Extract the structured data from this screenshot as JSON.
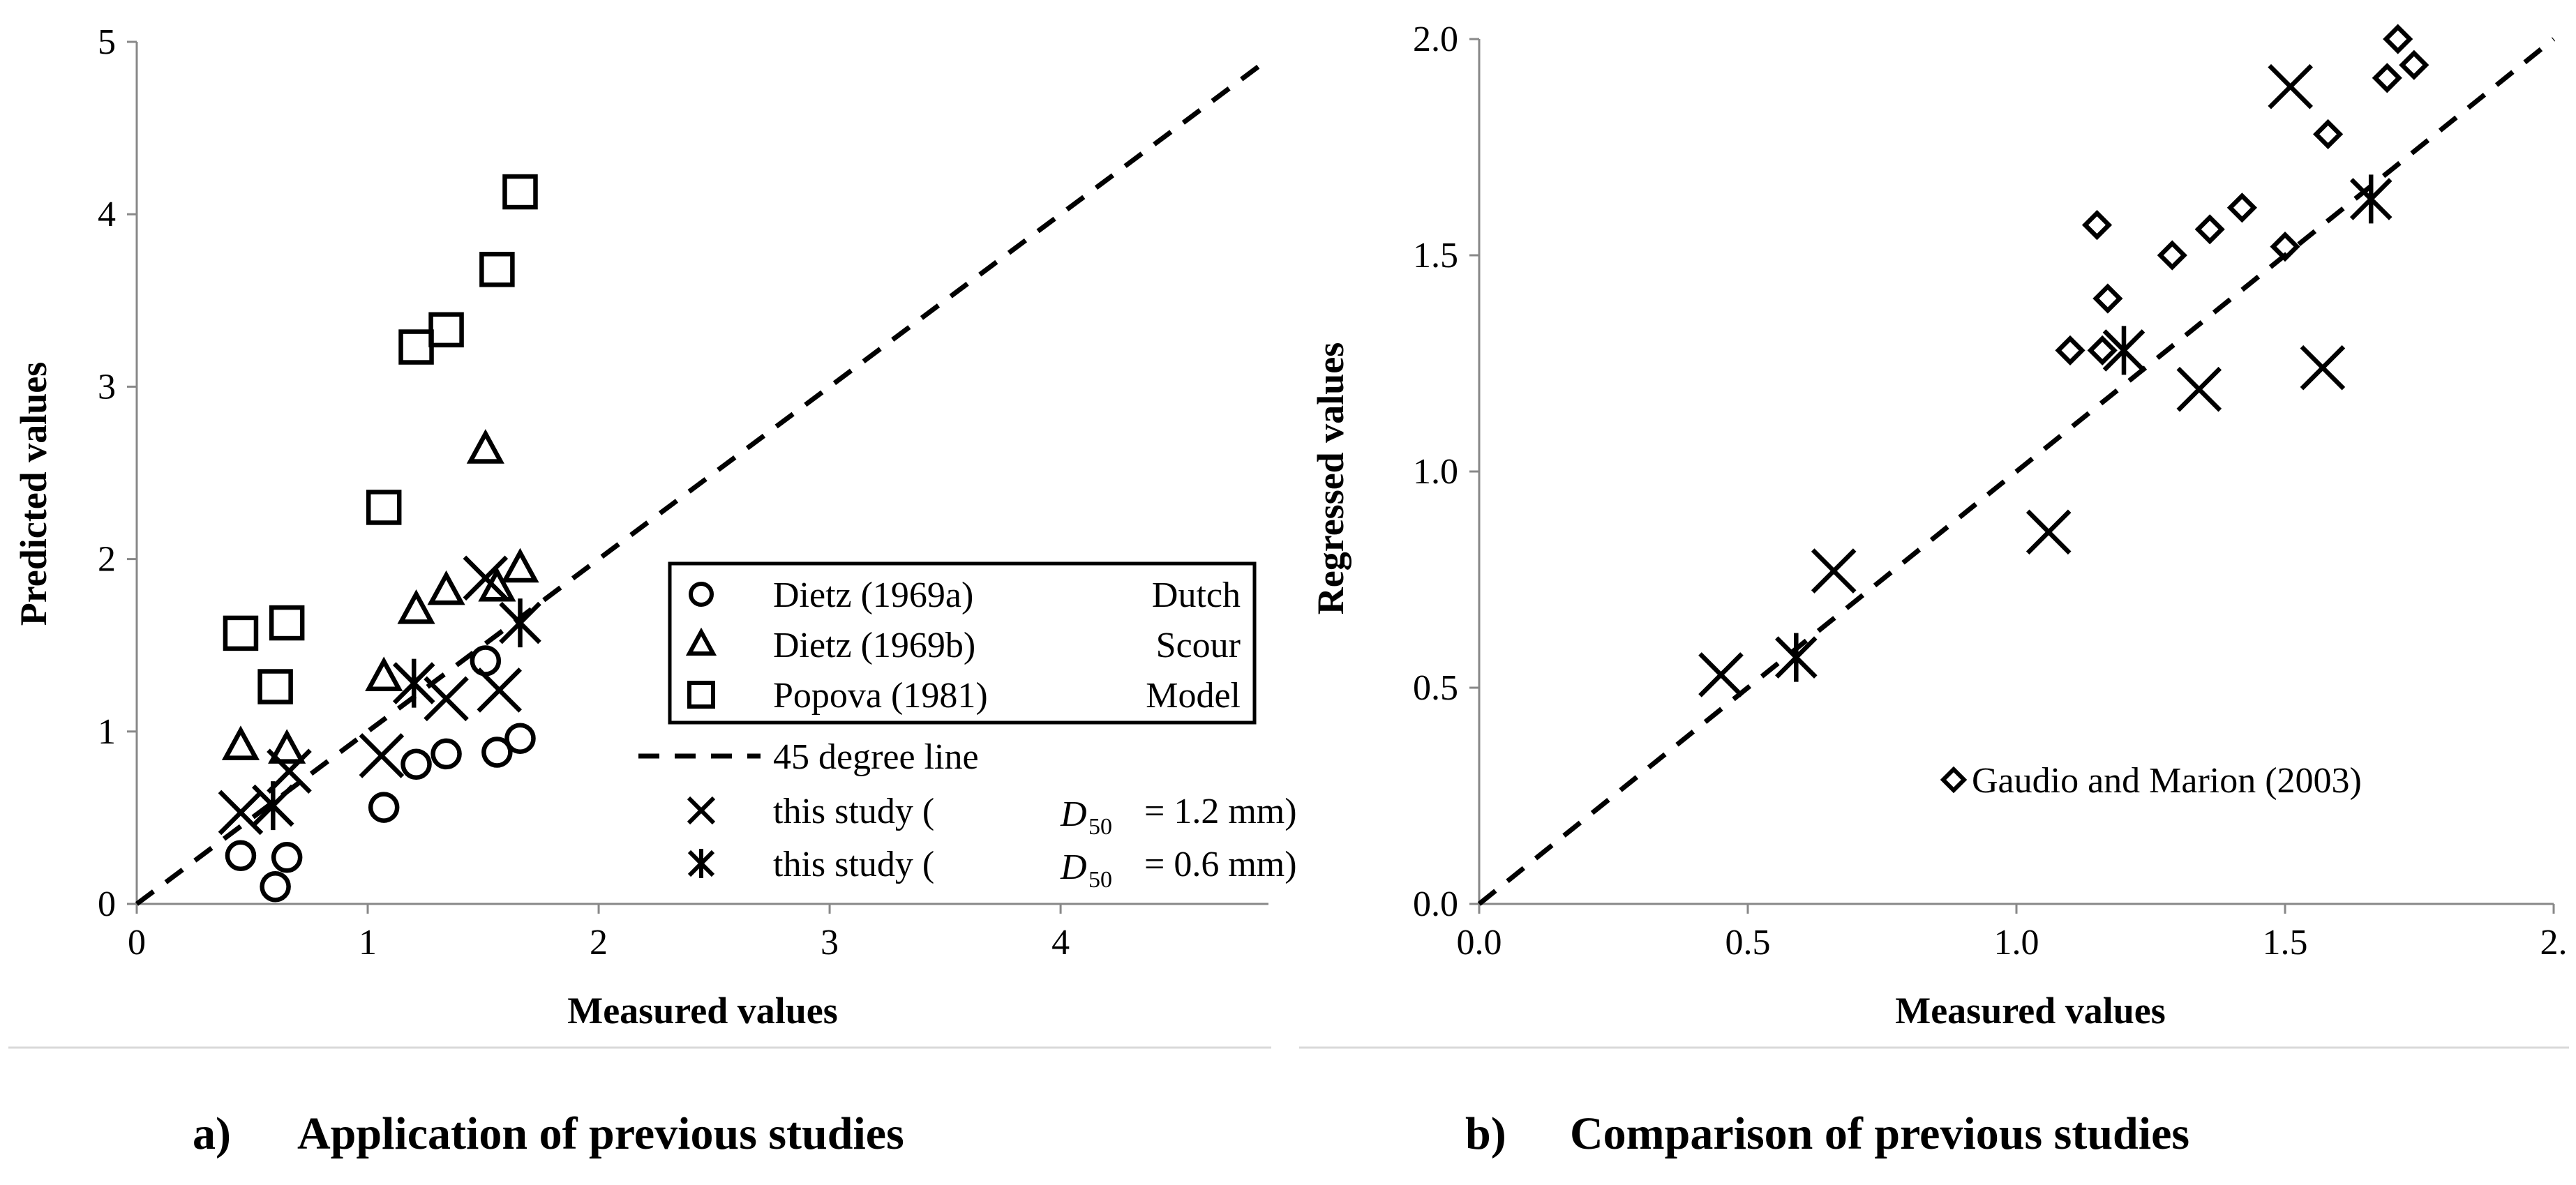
{
  "panel_a_caption": {
    "label": "a)",
    "text": "Application of previous studies"
  },
  "panel_b_caption": {
    "label": "b)",
    "text": "Comparison of previous studies"
  },
  "colors": {
    "ink": "#000000",
    "background": "#ffffff",
    "frame": "#d9d9d9"
  },
  "chart_data": [
    {
      "id": "a",
      "type": "scatter",
      "title": "",
      "xlabel": "Measured values",
      "ylabel": "Predicted values",
      "xlim": [
        0,
        4.9
      ],
      "ylim": [
        0,
        5
      ],
      "xticks": [
        0,
        1,
        2,
        3,
        4
      ],
      "xtick_labels": [
        "0",
        "1",
        "2",
        "3",
        "4"
      ],
      "yticks": [
        0,
        1,
        2,
        3,
        4,
        5
      ],
      "ytick_labels": [
        "0",
        "1",
        "2",
        "3",
        "4",
        "5"
      ],
      "grid": false,
      "legend_location": "lower-right",
      "legend_box_text": [
        "Dutch",
        "Scour",
        "Model"
      ],
      "reference_line": {
        "name": "45 degree line",
        "x": [
          0,
          4.9
        ],
        "y": [
          0,
          4.9
        ],
        "style": "dashed"
      },
      "series": [
        {
          "name": "Dietz (1969a)",
          "marker": "circle",
          "points": [
            [
              0.45,
              0.28
            ],
            [
              0.6,
              0.1
            ],
            [
              0.65,
              0.27
            ],
            [
              1.07,
              0.56
            ],
            [
              1.21,
              0.81
            ],
            [
              1.34,
              0.87
            ],
            [
              1.51,
              1.41
            ],
            [
              1.56,
              0.88
            ],
            [
              1.66,
              0.96
            ]
          ]
        },
        {
          "name": "Dietz (1969b)",
          "marker": "triangle",
          "points": [
            [
              0.45,
              0.91
            ],
            [
              0.65,
              0.89
            ],
            [
              1.07,
              1.31
            ],
            [
              1.21,
              1.7
            ],
            [
              1.34,
              1.81
            ],
            [
              1.51,
              2.63
            ],
            [
              1.56,
              1.83
            ],
            [
              1.66,
              1.94
            ]
          ]
        },
        {
          "name": "Popova (1981)",
          "marker": "square",
          "points": [
            [
              0.45,
              1.57
            ],
            [
              0.6,
              1.26
            ],
            [
              0.65,
              1.63
            ],
            [
              1.07,
              2.3
            ],
            [
              1.21,
              3.23
            ],
            [
              1.34,
              3.33
            ],
            [
              1.56,
              3.68
            ],
            [
              1.66,
              4.13
            ]
          ]
        },
        {
          "name": "this study (",
          "label_symbol": "D",
          "label_sub": "50",
          "label_tail": "= 1.2 mm)",
          "marker": "x",
          "points": [
            [
              0.45,
              0.53
            ],
            [
              0.66,
              0.77
            ],
            [
              1.06,
              0.86
            ],
            [
              1.34,
              1.19
            ],
            [
              1.51,
              1.89
            ],
            [
              1.57,
              1.24
            ]
          ]
        },
        {
          "name": "this study (",
          "label_symbol": "D",
          "label_sub": "50",
          "label_tail": "= 0.6 mm)",
          "marker": "star",
          "points": [
            [
              0.59,
              0.57
            ],
            [
              1.2,
              1.28
            ],
            [
              1.66,
              1.63
            ]
          ]
        }
      ]
    },
    {
      "id": "b",
      "type": "scatter",
      "title": "",
      "xlabel": "Measured values",
      "ylabel": "Regressed values",
      "xlim": [
        0,
        2
      ],
      "ylim": [
        0,
        2
      ],
      "xticks": [
        0,
        0.5,
        1,
        1.5,
        2
      ],
      "xtick_labels": [
        "0.0",
        "0.5",
        "1.0",
        "1.5",
        "2."
      ],
      "yticks": [
        0,
        0.5,
        1,
        1.5,
        2
      ],
      "ytick_labels": [
        "0.0",
        "0.5",
        "1.0",
        "1.5",
        "2.0"
      ],
      "grid": false,
      "legend_location": "lower-right",
      "reference_line": {
        "name": "",
        "x": [
          0,
          2
        ],
        "y": [
          0,
          2
        ],
        "style": "dashed"
      },
      "series": [
        {
          "name": "Gaudio and Marion (2003)",
          "marker": "diamond",
          "in_legend": true,
          "points": [
            [
              1.1,
              1.28
            ],
            [
              1.15,
              1.57
            ],
            [
              1.17,
              1.4
            ],
            [
              1.16,
              1.28
            ],
            [
              1.29,
              1.5
            ],
            [
              1.36,
              1.56
            ],
            [
              1.42,
              1.61
            ],
            [
              1.5,
              1.52
            ],
            [
              1.58,
              1.78
            ],
            [
              1.69,
              1.91
            ],
            [
              1.71,
              2.0
            ],
            [
              1.74,
              1.94
            ]
          ]
        },
        {
          "name": "this study (D50 = 1.2 mm)",
          "marker": "x",
          "in_legend": false,
          "points": [
            [
              0.45,
              0.53
            ],
            [
              0.66,
              0.77
            ],
            [
              1.06,
              0.86
            ],
            [
              1.34,
              1.19
            ],
            [
              1.51,
              1.89
            ],
            [
              1.57,
              1.24
            ]
          ]
        },
        {
          "name": "this study (D50 = 0.6 mm)",
          "marker": "star",
          "in_legend": false,
          "points": [
            [
              0.59,
              0.57
            ],
            [
              1.2,
              1.28
            ],
            [
              1.66,
              1.63
            ]
          ]
        }
      ]
    }
  ]
}
